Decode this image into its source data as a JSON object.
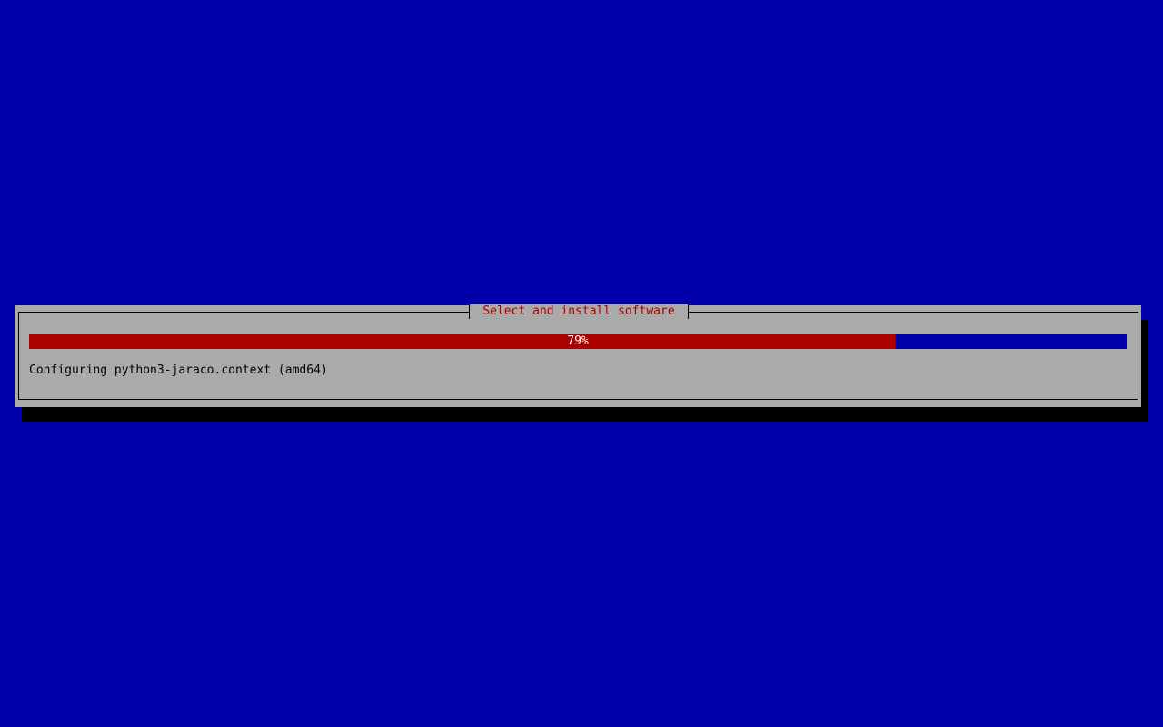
{
  "dialog": {
    "title": "Select and install software",
    "progress": {
      "percent": 79,
      "label": "79%"
    },
    "status": "Configuring python3-jaraco.context (amd64)"
  },
  "colors": {
    "background": "#0000a8",
    "dialog": "#aaaaaa",
    "progress_fill": "#aa0000",
    "title": "#aa0000"
  }
}
